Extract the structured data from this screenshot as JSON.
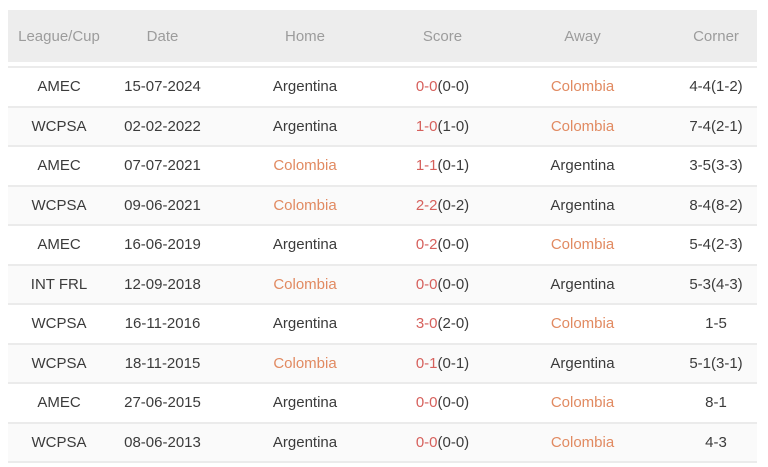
{
  "table": {
    "headers": [
      "League/Cup",
      "Date",
      "Home",
      "Score",
      "Away",
      "Corner"
    ],
    "highlight_team": "Colombia",
    "colors": {
      "score_fulltime_red": "#d6605c",
      "team_highlight_orange": "#e18a61",
      "body_text": "#3b3b3b",
      "header_background": "#ededed",
      "header_text": "#9c9c9c"
    },
    "rows": [
      {
        "league": "AMEC",
        "date": "15-07-2024",
        "home": "Argentina",
        "score_ft": "0-0",
        "score_ht": "(0-0)",
        "away": "Colombia",
        "corner": "4-4(1-2)"
      },
      {
        "league": "WCPSA",
        "date": "02-02-2022",
        "home": "Argentina",
        "score_ft": "1-0",
        "score_ht": "(1-0)",
        "away": "Colombia",
        "corner": "7-4(2-1)"
      },
      {
        "league": "AMEC",
        "date": "07-07-2021",
        "home": "Colombia",
        "score_ft": "1-1",
        "score_ht": "(0-1)",
        "away": "Argentina",
        "corner": "3-5(3-3)"
      },
      {
        "league": "WCPSA",
        "date": "09-06-2021",
        "home": "Colombia",
        "score_ft": "2-2",
        "score_ht": "(0-2)",
        "away": "Argentina",
        "corner": "8-4(8-2)"
      },
      {
        "league": "AMEC",
        "date": "16-06-2019",
        "home": "Argentina",
        "score_ft": "0-2",
        "score_ht": "(0-0)",
        "away": "Colombia",
        "corner": "5-4(2-3)"
      },
      {
        "league": "INT FRL",
        "date": "12-09-2018",
        "home": "Colombia",
        "score_ft": "0-0",
        "score_ht": "(0-0)",
        "away": "Argentina",
        "corner": "5-3(4-3)"
      },
      {
        "league": "WCPSA",
        "date": "16-11-2016",
        "home": "Argentina",
        "score_ft": "3-0",
        "score_ht": "(2-0)",
        "away": "Colombia",
        "corner": "1-5"
      },
      {
        "league": "WCPSA",
        "date": "18-11-2015",
        "home": "Colombia",
        "score_ft": "0-1",
        "score_ht": "(0-1)",
        "away": "Argentina",
        "corner": "5-1(3-1)"
      },
      {
        "league": "AMEC",
        "date": "27-06-2015",
        "home": "Argentina",
        "score_ft": "0-0",
        "score_ht": "(0-0)",
        "away": "Colombia",
        "corner": "8-1"
      },
      {
        "league": "WCPSA",
        "date": "08-06-2013",
        "home": "Argentina",
        "score_ft": "0-0",
        "score_ht": "(0-0)",
        "away": "Colombia",
        "corner": "4-3"
      }
    ]
  }
}
